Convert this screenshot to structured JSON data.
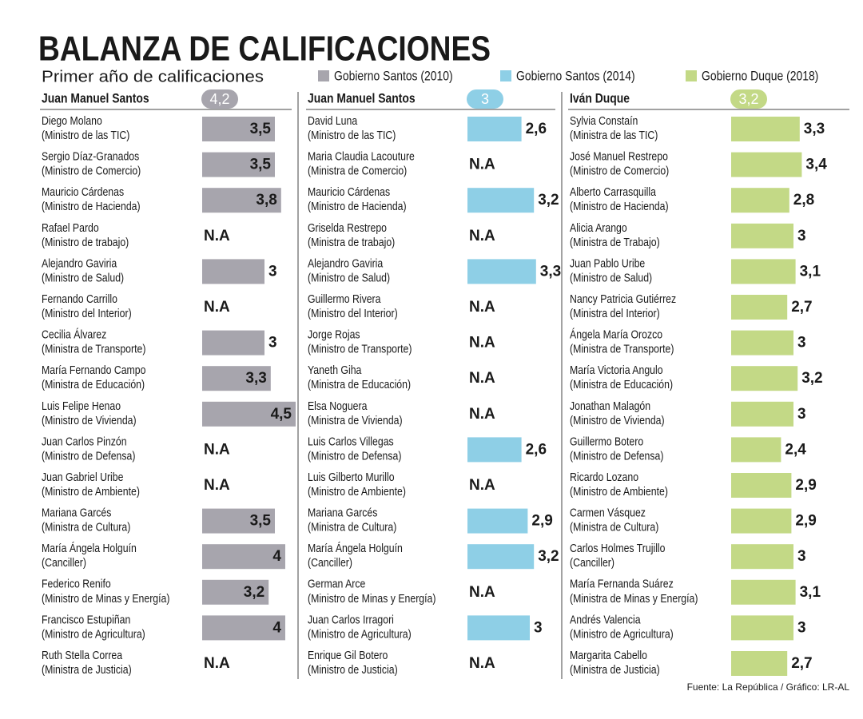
{
  "title": "BALANZA DE CALIFICACIONES",
  "subtitle": "Primer año de calificaciones",
  "source": "Fuente: La República / Gráfico: LR-AL",
  "chart_data": [
    {
      "type": "bar",
      "name": "Gobierno Santos (2010)",
      "color": "#a7a5ad",
      "header": "Juan Manuel Santos",
      "rating": {
        "value": 4.2,
        "label": "4,2"
      },
      "categories": [
        "Diego Molano",
        "Sergio Díaz-Granados",
        "Mauricio Cárdenas",
        "Rafael Pardo",
        "Alejandro Gaviria",
        "Fernando Carrillo",
        "Cecilia Álvarez",
        "María Fernando Campo",
        "Luis Felipe Henao",
        "Juan Carlos Pinzón",
        "Juan Gabriel Uribe",
        "Mariana Garcés",
        "María Ángela Holguín",
        "Federico Renifo",
        "Francisco Estupiñan",
        "Ruth Stella Correa"
      ],
      "roles": [
        "(Ministro de las TIC)",
        "(Ministro de Comercio)",
        "(Ministro de Hacienda)",
        "(Ministro de trabajo)",
        "(Ministro de Salud)",
        "(Ministro del Interior)",
        "(Ministra de Transporte)",
        "(Ministra de Educación)",
        "(Ministro de Vivienda)",
        "(Ministro de Defensa)",
        "(Ministro de Ambiente)",
        "(Ministra de Cultura)",
        "(Canciller)",
        "(Ministro de Minas y Energía)",
        "(Ministro de Agricultura)",
        "(Ministra de Justicia)"
      ],
      "values": [
        3.5,
        3.5,
        3.8,
        null,
        3,
        null,
        3,
        3.3,
        4.5,
        null,
        null,
        3.5,
        4,
        3.2,
        4,
        null
      ],
      "value_labels": [
        "3,5",
        "3,5",
        "3,8",
        "N.A",
        "3",
        "N.A",
        "3",
        "3,3",
        "4,5",
        "N.A",
        "N.A",
        "3,5",
        "4",
        "3,2",
        "4",
        "N.A"
      ]
    },
    {
      "type": "bar",
      "name": "Gobierno Santos (2014)",
      "color": "#8ecfe6",
      "header": "Juan Manuel Santos",
      "rating": {
        "value": 3,
        "label": "3"
      },
      "categories": [
        "David Luna",
        "Maria Claudia Lacouture",
        "Mauricio Cárdenas",
        "Griselda Restrepo",
        "Alejandro Gaviria",
        "Guillermo Rivera",
        "Jorge Rojas",
        "Yaneth Giha",
        "Elsa Noguera",
        "Luis Carlos Villegas",
        "Luis Gilberto Murillo",
        "Mariana Garcés",
        "María Ángela Holguín",
        "German Arce",
        "Juan Carlos Irragori",
        "Enrique Gil Botero"
      ],
      "roles": [
        "(Ministro de las TIC)",
        "(Ministra de Comercio)",
        "(Ministro de Hacienda)",
        "(Ministra de trabajo)",
        "(Ministro de Salud)",
        "(Ministro del Interior)",
        "(Ministro de Transporte)",
        "(Ministra de Educación)",
        "(Ministra de Vivienda)",
        "(Ministro de Defensa)",
        "(Ministro de Ambiente)",
        "(Ministra de Cultura)",
        "(Canciller)",
        "(Ministro de Minas y Energía)",
        "(Ministro de Agricultura)",
        "(Ministro de Justicia)"
      ],
      "values": [
        2.6,
        null,
        3.2,
        null,
        3.3,
        null,
        null,
        null,
        null,
        2.6,
        null,
        2.9,
        3.2,
        null,
        3,
        null
      ],
      "value_labels": [
        "2,6",
        "N.A",
        "3,2",
        "N.A",
        "3,3",
        "N.A",
        "N.A",
        "N.A",
        "N.A",
        "2,6",
        "N.A",
        "2,9",
        "3,2",
        "N.A",
        "3",
        "N.A"
      ]
    },
    {
      "type": "bar",
      "name": "Gobierno Duque (2018)",
      "color": "#c3d986",
      "header": "Iván Duque",
      "rating": {
        "value": 3.2,
        "label": "3,2"
      },
      "categories": [
        "Sylvia Constaín",
        "José Manuel Restrepo",
        "Alberto Carrasquilla",
        "Alicia Arango",
        "Juan Pablo Uribe",
        "Nancy Patricia Gutiérrez",
        "Ángela María Orozco",
        "María Victoria Angulo",
        "Jonathan Malagón",
        "Guillermo Botero",
        "Ricardo Lozano",
        "Carmen Vásquez",
        "Carlos Holmes Trujillo",
        "María Fernanda Suárez",
        "Andrés Valencia",
        "Margarita Cabello"
      ],
      "roles": [
        "(Ministra de las TIC)",
        "(Ministro de Comercio)",
        "(Ministro de Hacienda)",
        "(Ministra de Trabajo)",
        "(Ministro de Salud)",
        "(Ministra del Interior)",
        "(Ministra de Transporte)",
        "(Ministra de Educación)",
        "(Ministro de Vivienda)",
        "(Ministro de Defensa)",
        "(Ministro de Ambiente)",
        "(Ministra de Cultura)",
        "(Canciller)",
        "(Ministra de Minas y Energía)",
        "(Ministro de Agricultura)",
        "(Ministra de Justicia)"
      ],
      "values": [
        3.3,
        3.4,
        2.8,
        3,
        3.1,
        2.7,
        3,
        3.2,
        3,
        2.4,
        2.9,
        2.9,
        3,
        3.1,
        3,
        2.7
      ],
      "value_labels": [
        "3,3",
        "3,4",
        "2,8",
        "3",
        "3,1",
        "2,7",
        "3",
        "3,2",
        "3",
        "2,4",
        "2,9",
        "2,9",
        "3",
        "3,1",
        "3",
        "2,7"
      ]
    }
  ]
}
